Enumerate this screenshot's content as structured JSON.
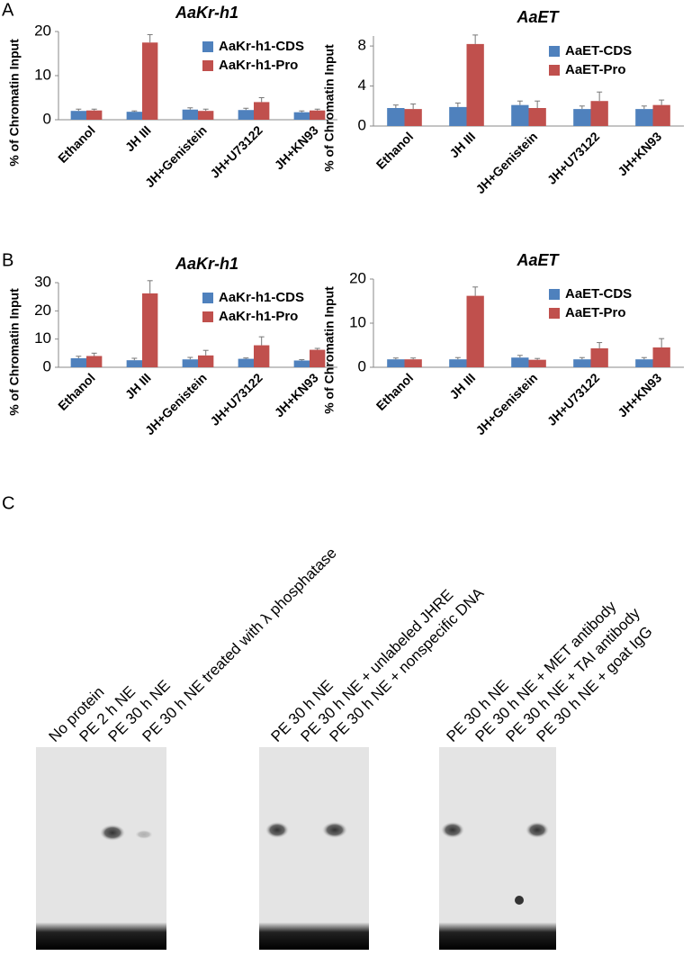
{
  "panels": {
    "labels": [
      "A",
      "B",
      "C"
    ]
  },
  "chart_data": [
    {
      "type": "bar",
      "title": "AaKr-h1",
      "ylabel": "% of Chromatin Input",
      "categories": [
        "Ethanol",
        "JH III",
        "JH+Genistein",
        "JH+U73122",
        "JH+KN93"
      ],
      "ylim": [
        0,
        20
      ],
      "yticks": [
        0,
        10,
        20
      ],
      "legend": "upper right",
      "series": [
        {
          "name": "AaKr-h1-CDS",
          "color": "#4f81bd",
          "values": [
            2.0,
            1.8,
            2.3,
            2.2,
            1.7
          ],
          "errors": [
            0.4,
            0.2,
            0.4,
            0.4,
            0.3
          ]
        },
        {
          "name": "AaKr-h1-Pro",
          "color": "#c0504d",
          "values": [
            2.1,
            17.5,
            2.0,
            4.0,
            2.1
          ],
          "errors": [
            0.3,
            1.8,
            0.4,
            1.0,
            0.3
          ]
        }
      ]
    },
    {
      "type": "bar",
      "title": "AaET",
      "ylabel": "% of Chromatin Input",
      "categories": [
        "Ethanol",
        "JH III",
        "JH+Genistein",
        "JH+U73122",
        "JH+KN93"
      ],
      "ylim": [
        0,
        9
      ],
      "yticks": [
        0,
        4,
        8
      ],
      "legend": "upper right",
      "series": [
        {
          "name": "AaET-CDS",
          "color": "#4f81bd",
          "values": [
            1.8,
            1.9,
            2.1,
            1.7,
            1.7
          ],
          "errors": [
            0.3,
            0.4,
            0.4,
            0.3,
            0.3
          ]
        },
        {
          "name": "AaET-Pro",
          "color": "#c0504d",
          "values": [
            1.7,
            8.2,
            1.8,
            2.5,
            2.1
          ],
          "errors": [
            0.5,
            0.9,
            0.7,
            0.9,
            0.5
          ]
        }
      ]
    },
    {
      "type": "bar",
      "title": "AaKr-h1",
      "ylabel": "% of Chromatin Input",
      "categories": [
        "Ethanol",
        "JH III",
        "JH+Genistein",
        "JH+U73122",
        "JH+KN93"
      ],
      "ylim": [
        0,
        30
      ],
      "yticks": [
        0,
        10,
        20,
        30
      ],
      "legend": "upper right",
      "series": [
        {
          "name": "AaKr-h1-CDS",
          "color": "#4f81bd",
          "values": [
            3.2,
            2.5,
            2.8,
            3.0,
            2.4
          ],
          "errors": [
            0.7,
            0.7,
            0.7,
            0.3,
            0.3
          ]
        },
        {
          "name": "AaKr-h1-Pro",
          "color": "#c0504d",
          "values": [
            4.0,
            26.2,
            4.2,
            7.8,
            6.2
          ],
          "errors": [
            1.0,
            4.5,
            1.8,
            3.0,
            0.5
          ]
        }
      ]
    },
    {
      "type": "bar",
      "title": "AaET",
      "ylabel": "% of Chromatin Input",
      "categories": [
        "Ethanol",
        "JH III",
        "JH+Genistein",
        "JH+U73122",
        "JH+KN93"
      ],
      "ylim": [
        0,
        20
      ],
      "yticks": [
        0,
        10,
        20
      ],
      "legend": "upper right",
      "series": [
        {
          "name": "AaET-CDS",
          "color": "#4f81bd",
          "values": [
            1.8,
            1.8,
            2.2,
            1.8,
            1.8
          ],
          "errors": [
            0.3,
            0.4,
            0.5,
            0.4,
            0.4
          ]
        },
        {
          "name": "AaET-Pro",
          "color": "#c0504d",
          "values": [
            1.8,
            16.2,
            1.7,
            4.3,
            4.5
          ],
          "errors": [
            0.3,
            2.0,
            0.3,
            1.3,
            2.0
          ]
        }
      ]
    }
  ],
  "gel": {
    "groups": [
      {
        "lanes": [
          "No protein",
          "PE 2 h NE",
          "PE 30 h NE",
          "PE 30 h NE treated with λ phosphatase"
        ]
      },
      {
        "lanes": [
          "PE 30 h NE",
          "PE 30 h NE + unlabeled JHRE",
          "PE 30 h NE + nonspecific DNA"
        ]
      },
      {
        "lanes": [
          "PE 30 h NE",
          "PE 30 h NE + MET antibody",
          "PE 30 h NE + TAI antibody",
          "PE 30 h NE + goat IgG"
        ]
      }
    ]
  }
}
